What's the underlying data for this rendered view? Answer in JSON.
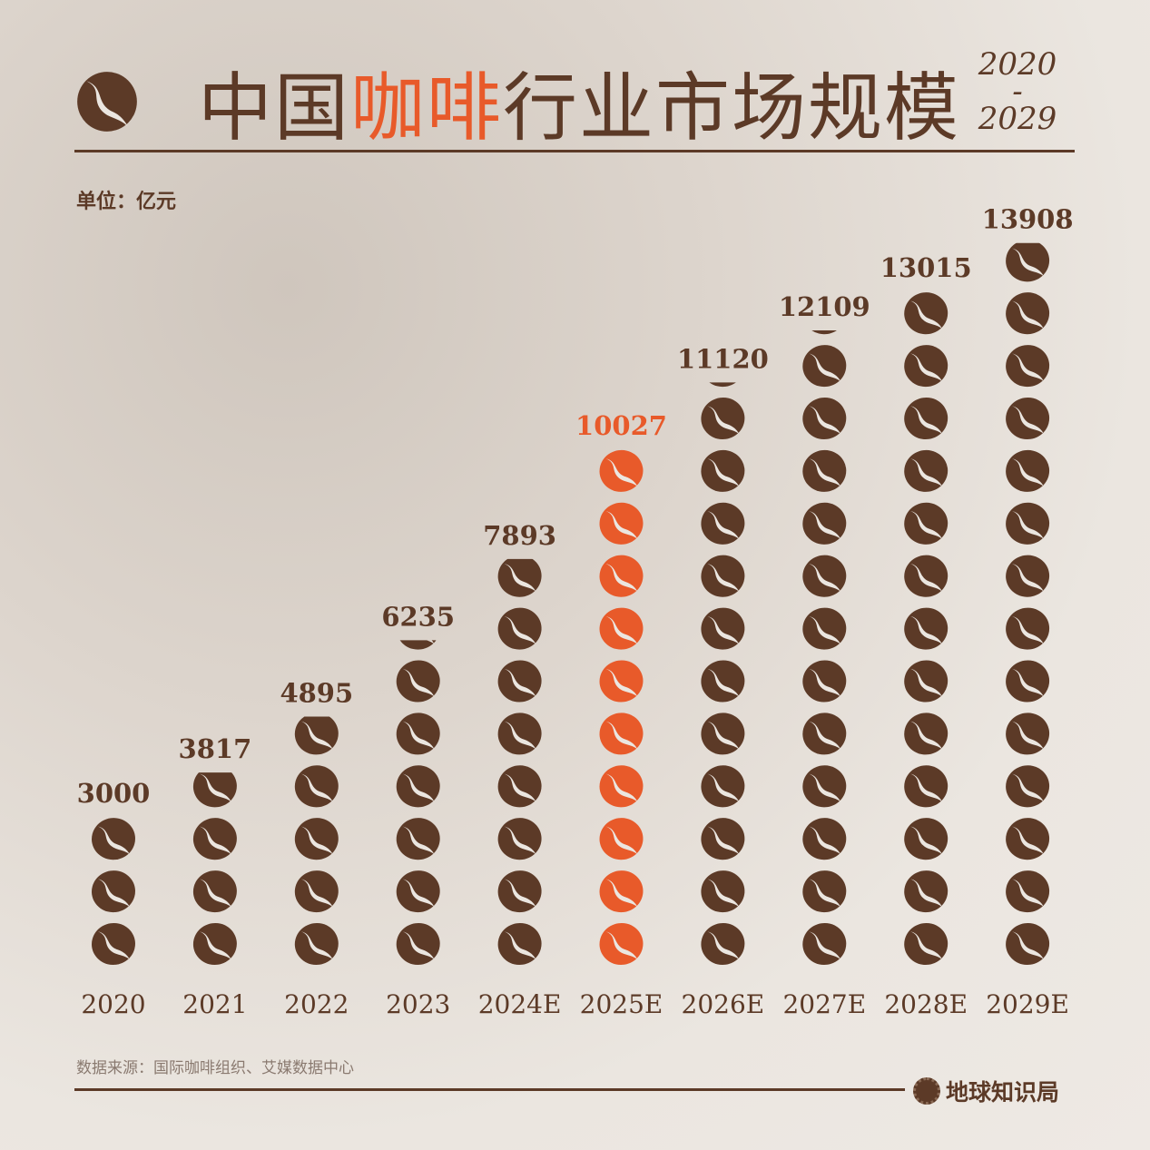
{
  "header": {
    "title_prefix": "中国",
    "title_highlight": "咖啡",
    "title_suffix": "行业市场规模",
    "year_start": "2020",
    "year_dash": "-",
    "year_end": "2029"
  },
  "unit": "单位：亿元",
  "footer": {
    "source": "数据来源：国际咖啡组织、艾媒数据中心",
    "brand": "地球知识局"
  },
  "colors": {
    "brown": "#5c3a27",
    "highlight": "#e85a2a"
  },
  "chart_data": {
    "type": "pictogram-bar",
    "unit_per_icon": 1000,
    "icon": "coffee-bean-icon",
    "categories": [
      "2020",
      "2021",
      "2022",
      "2023",
      "2024E",
      "2025E",
      "2026E",
      "2027E",
      "2028E",
      "2029E"
    ],
    "values": [
      3000,
      3817,
      4895,
      6235,
      7893,
      10027,
      11120,
      12109,
      13015,
      13908
    ],
    "labels": [
      "3000",
      "3817",
      "4895",
      "6235",
      "7893",
      "10027",
      "11120",
      "12109",
      "13015",
      "13908"
    ],
    "highlight_category": "2025E",
    "ylabel": "单位：亿元"
  }
}
